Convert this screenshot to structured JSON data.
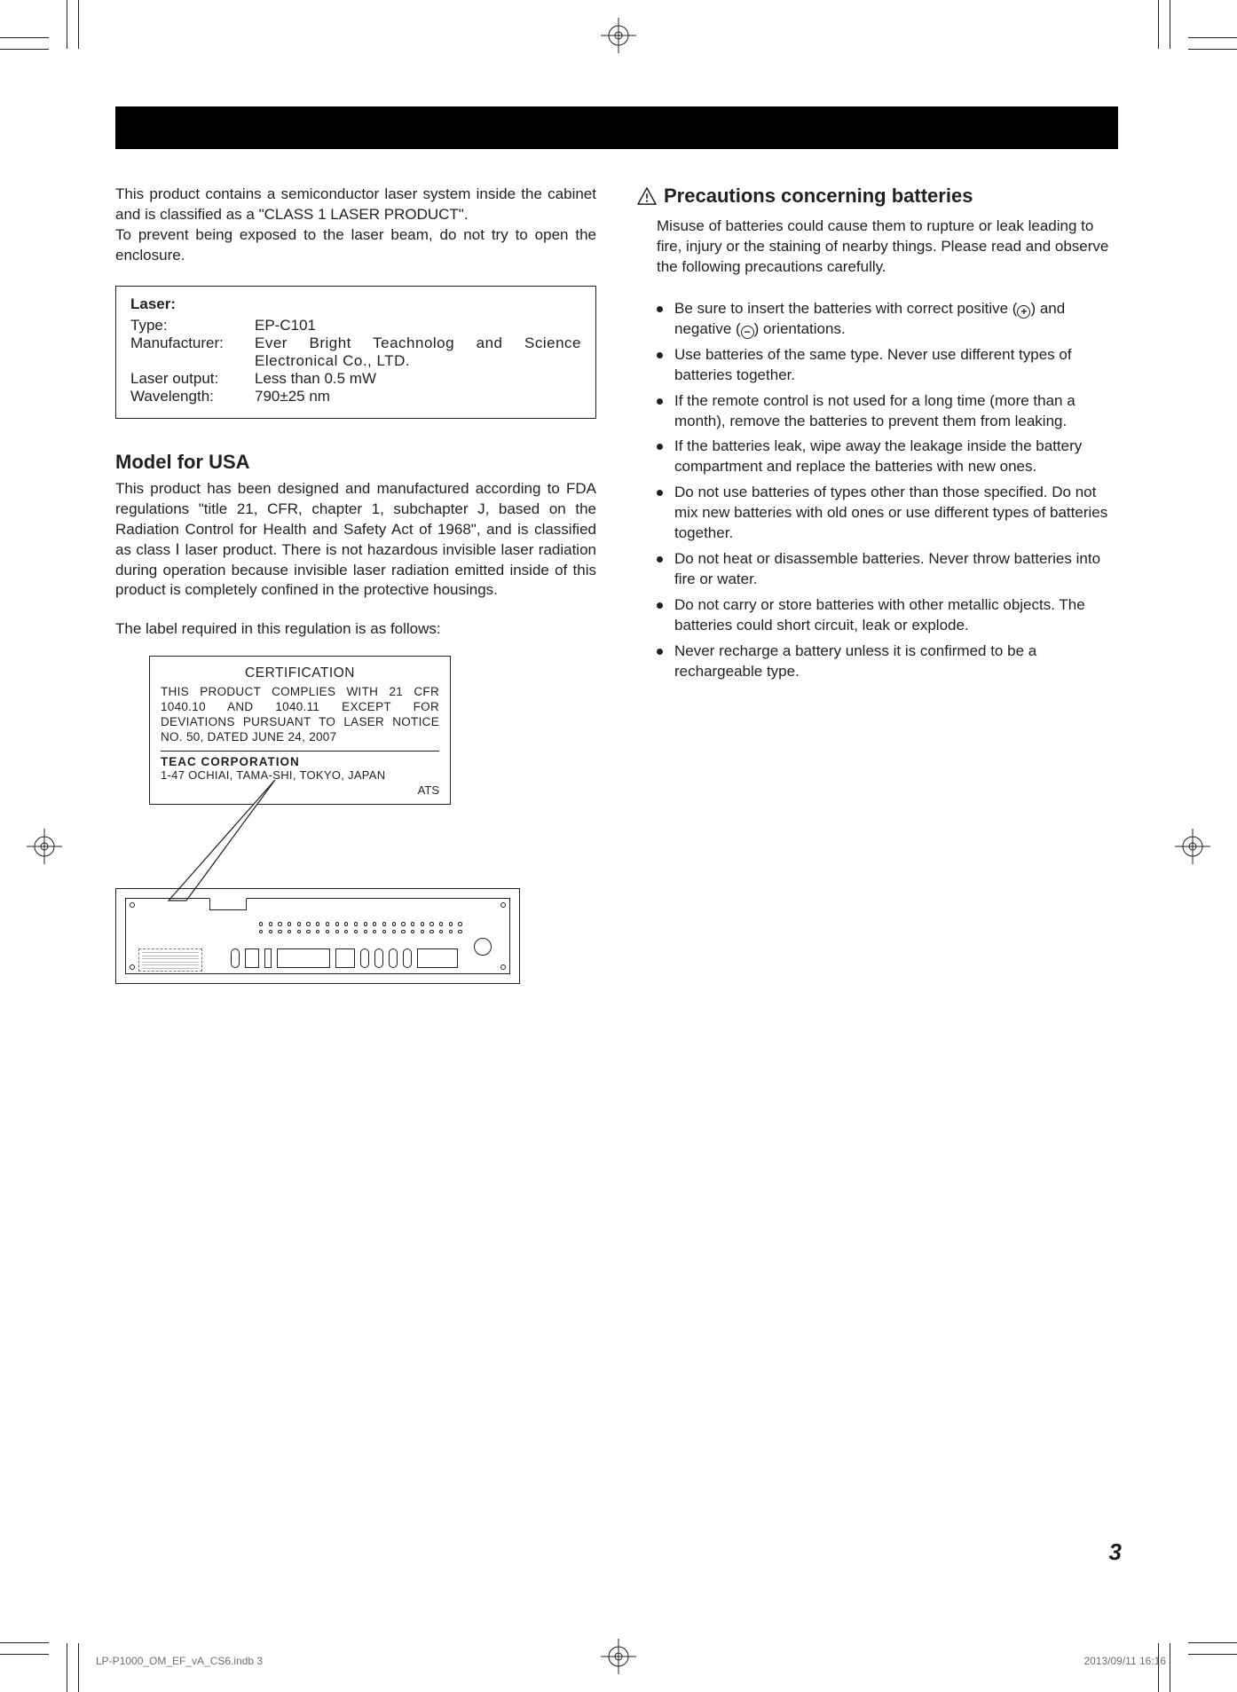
{
  "intro": {
    "p1": "This product contains a semiconductor laser system inside the cabinet and is classified as a \"CLASS 1 LASER PRODUCT\".",
    "p2": "To prevent being exposed to the laser beam, do not try to open the enclosure."
  },
  "laser": {
    "heading": "Laser:",
    "rows": [
      {
        "k": "Type:",
        "v": "EP-C101"
      },
      {
        "k": "Manufacturer:",
        "v": "Ever Bright Teachnolog and Science Electronical Co., LTD."
      },
      {
        "k": "Laser output:",
        "v": "Less than 0.5 mW"
      },
      {
        "k": "Wavelength:",
        "v": "790±25 nm"
      }
    ]
  },
  "usa": {
    "heading": "Model for USA",
    "body": "This product has been designed and manufactured according to FDA regulations \"title 21, CFR, chapter 1, subchapter J, based on the Radiation Control for Health and Safety Act of 1968\", and is classified as class Ⅰ laser product. There is not hazardous invisible laser radiation during operation because invisible laser radiation emitted inside of this product is completely confined in the protective housings.",
    "note": "The label required in this regulation is as follows:"
  },
  "cert": {
    "title": "CERTIFICATION",
    "body": "THIS PRODUCT COMPLIES WITH 21 CFR 1040.10 AND 1040.11 EXCEPT FOR DEVIATIONS PURSUANT TO LASER NOTICE NO. 50, DATED JUNE 24, 2007",
    "corp": "TEAC CORPORATION",
    "addr": "1-47 OCHIAI, TAMA-SHI, TOKYO, JAPAN",
    "ats": "ATS"
  },
  "precautions": {
    "heading": "Precautions concerning batteries",
    "intro": "Misuse of batteries could cause them to rupture or leak leading to fire, injury or the staining of nearby things. Please read and observe the following precautions carefully.",
    "items": [
      {
        "pre": "Be sure to insert the batteries with correct positive (",
        "sym": "+",
        "mid": ") and negative (",
        "sym2": "−",
        "post": ") orientations."
      },
      {
        "text": "Use batteries of the same type. Never use different types of batteries together."
      },
      {
        "text": "If the remote control is not used for a long time (more than a month), remove the batteries to prevent them from leaking."
      },
      {
        "text": "If the batteries leak, wipe away the leakage inside the battery compartment and replace the batteries with new ones."
      },
      {
        "text": "Do not use batteries of types other than those specified. Do not mix new batteries with old ones or use different types of batteries together."
      },
      {
        "text": "Do not heat or disassemble batteries. Never throw batteries into fire or water."
      },
      {
        "text": "Do not carry or store batteries with other metallic objects. The batteries could short circuit, leak or explode."
      },
      {
        "text": "Never recharge a battery unless it is confirmed to be a rechargeable type."
      }
    ]
  },
  "page_number": "3",
  "footer": {
    "left": "LP-P1000_OM_EF_vA_CS6.indb   3",
    "right": "2013/09/11   16:16"
  },
  "colors": {
    "text": "#231f20",
    "bar": "#000000",
    "footer": "#6d6e71"
  }
}
